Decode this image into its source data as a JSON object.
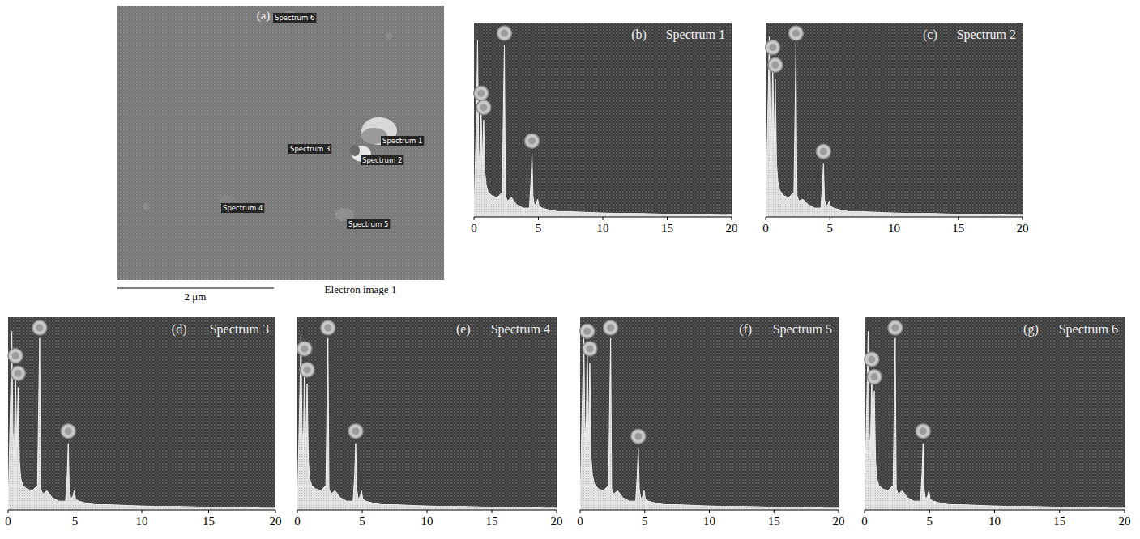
{
  "image_panel": {
    "panel_label": "(a)",
    "spot_labels": [
      "Spectrum 1",
      "Spectrum 2",
      "Spectrum 3",
      "Spectrum 4",
      "Spectrum 5",
      "Spectrum 6"
    ],
    "scale_bar": "2 μm",
    "caption": "Electron image 1"
  },
  "chart_data": [
    {
      "type": "area",
      "panel_label": "(b)",
      "title": "Spectrum 1",
      "tick_labels": "x",
      "xlim": [
        0,
        20
      ],
      "xticks": [
        0,
        5,
        10,
        15,
        20
      ],
      "ylim": [
        0,
        110
      ],
      "x": [
        0,
        0.1,
        0.2,
        0.28,
        0.36,
        0.45,
        0.55,
        0.65,
        0.75,
        0.85,
        0.95,
        1.1,
        1.4,
        1.8,
        2.2,
        2.28,
        2.36,
        2.44,
        2.6,
        2.9,
        3.3,
        3.8,
        4.3,
        4.42,
        4.5,
        4.58,
        4.7,
        4.85,
        4.95,
        5.05,
        5.3,
        5.8,
        6.5,
        7.5,
        9,
        11,
        13,
        15,
        17,
        19,
        20
      ],
      "values": [
        0,
        30,
        60,
        100,
        40,
        25,
        62,
        30,
        55,
        25,
        18,
        14,
        12,
        11,
        14,
        60,
        97,
        12,
        9,
        11,
        7,
        5,
        5,
        20,
        36,
        12,
        6,
        8,
        10,
        6,
        5,
        4,
        3,
        3,
        2.5,
        2,
        2,
        1.5,
        1.5,
        1,
        1
      ],
      "peaks": {
        "x": [
          0.55,
          0.75,
          2.36,
          4.5
        ],
        "y": [
          70,
          62,
          104,
          43
        ]
      }
    },
    {
      "type": "area",
      "panel_label": "(c)",
      "title": "Spectrum 2",
      "tick_labels": "x",
      "xlim": [
        0,
        20
      ],
      "xticks": [
        0,
        5,
        10,
        15,
        20
      ],
      "ylim": [
        0,
        110
      ],
      "x": [
        0,
        0.1,
        0.2,
        0.28,
        0.36,
        0.45,
        0.55,
        0.65,
        0.75,
        0.85,
        0.95,
        1.1,
        1.4,
        1.8,
        2.2,
        2.28,
        2.36,
        2.44,
        2.6,
        2.9,
        3.3,
        3.8,
        4.3,
        4.42,
        4.5,
        4.58,
        4.7,
        4.85,
        4.95,
        5.05,
        5.3,
        5.8,
        6.5,
        7.5,
        9,
        11,
        13,
        15,
        17,
        19,
        20
      ],
      "values": [
        0,
        35,
        70,
        102,
        50,
        35,
        88,
        40,
        78,
        30,
        20,
        15,
        12,
        11,
        14,
        55,
        98,
        12,
        9,
        10,
        7,
        5,
        5,
        18,
        30,
        10,
        6,
        7,
        9,
        6,
        5,
        4,
        3,
        3,
        2.5,
        2,
        2,
        1.5,
        1.5,
        1,
        1
      ],
      "peaks": {
        "x": [
          0.55,
          0.75,
          2.36,
          4.5
        ],
        "y": [
          96,
          86,
          104,
          37
        ]
      }
    },
    {
      "type": "area",
      "panel_label": "(d)",
      "title": "Spectrum 3",
      "tick_labels": "x",
      "xlim": [
        0,
        20
      ],
      "xticks": [
        0,
        5,
        10,
        15,
        20
      ],
      "ylim": [
        0,
        110
      ],
      "x": [
        0,
        0.1,
        0.2,
        0.28,
        0.36,
        0.45,
        0.55,
        0.65,
        0.75,
        0.85,
        0.95,
        1.1,
        1.4,
        1.8,
        2.2,
        2.28,
        2.36,
        2.44,
        2.6,
        2.9,
        3.3,
        3.8,
        4.3,
        4.42,
        4.5,
        4.58,
        4.7,
        4.85,
        4.95,
        5.05,
        5.3,
        5.8,
        6.5,
        7.5,
        9,
        11,
        13,
        15,
        17,
        19,
        20
      ],
      "values": [
        0,
        35,
        70,
        102,
        45,
        30,
        80,
        35,
        70,
        28,
        18,
        14,
        12,
        11,
        14,
        58,
        98,
        12,
        9,
        11,
        7,
        5,
        5,
        20,
        38,
        12,
        6,
        8,
        11,
        6,
        5,
        4,
        3,
        3,
        2.5,
        2,
        2,
        1.5,
        1.5,
        1,
        1
      ],
      "peaks": {
        "x": [
          0.55,
          0.75,
          2.36,
          4.5
        ],
        "y": [
          88,
          78,
          104,
          45
        ]
      }
    },
    {
      "type": "area",
      "panel_label": "(e)",
      "title": "Spectrum 4",
      "tick_labels": "x",
      "xlim": [
        0,
        20
      ],
      "xticks": [
        0,
        5,
        10,
        15,
        20
      ],
      "ylim": [
        0,
        110
      ],
      "x": [
        0,
        0.1,
        0.2,
        0.28,
        0.36,
        0.45,
        0.55,
        0.65,
        0.75,
        0.85,
        0.95,
        1.1,
        1.4,
        1.8,
        2.2,
        2.28,
        2.36,
        2.44,
        2.6,
        2.9,
        3.3,
        3.8,
        4.3,
        4.42,
        4.5,
        4.58,
        4.7,
        4.85,
        4.95,
        5.05,
        5.3,
        5.8,
        6.5,
        7.5,
        9,
        11,
        13,
        15,
        17,
        19,
        20
      ],
      "values": [
        0,
        35,
        70,
        102,
        48,
        32,
        84,
        36,
        72,
        28,
        18,
        14,
        12,
        11,
        14,
        58,
        98,
        12,
        9,
        11,
        7,
        5,
        5,
        20,
        38,
        12,
        6,
        8,
        11,
        6,
        5,
        4,
        3,
        3,
        2.5,
        2,
        2,
        1.5,
        1.5,
        1,
        1
      ],
      "peaks": {
        "x": [
          0.55,
          0.75,
          2.36,
          4.5
        ],
        "y": [
          92,
          80,
          104,
          45
        ]
      }
    },
    {
      "type": "area",
      "panel_label": "(f)",
      "title": "Spectrum 5",
      "tick_labels": "x",
      "xlim": [
        0,
        20
      ],
      "xticks": [
        0,
        5,
        10,
        15,
        20
      ],
      "ylim": [
        0,
        110
      ],
      "x": [
        0,
        0.1,
        0.2,
        0.28,
        0.36,
        0.45,
        0.55,
        0.65,
        0.75,
        0.85,
        0.95,
        1.1,
        1.4,
        1.8,
        2.2,
        2.28,
        2.36,
        2.44,
        2.6,
        2.9,
        3.3,
        3.8,
        4.3,
        4.42,
        4.5,
        4.58,
        4.7,
        4.85,
        4.95,
        5.05,
        5.3,
        5.8,
        6.5,
        7.5,
        9,
        11,
        13,
        15,
        17,
        19,
        20
      ],
      "values": [
        0,
        38,
        72,
        103,
        52,
        36,
        94,
        40,
        84,
        30,
        20,
        15,
        12,
        11,
        14,
        58,
        98,
        12,
        9,
        11,
        7,
        5,
        5,
        20,
        35,
        12,
        6,
        8,
        11,
        6,
        5,
        4,
        3,
        3,
        2.5,
        2,
        2,
        1.5,
        1.5,
        1,
        1
      ],
      "peaks": {
        "x": [
          0.55,
          0.75,
          2.36,
          4.5
        ],
        "y": [
          102,
          92,
          104,
          42
        ]
      }
    },
    {
      "type": "area",
      "panel_label": "(g)",
      "title": "Spectrum 6",
      "tick_labels": "x",
      "xlim": [
        0,
        20
      ],
      "xticks": [
        0,
        5,
        10,
        15,
        20
      ],
      "ylim": [
        0,
        110
      ],
      "x": [
        0,
        0.1,
        0.2,
        0.28,
        0.36,
        0.45,
        0.55,
        0.65,
        0.75,
        0.85,
        0.95,
        1.1,
        1.4,
        1.8,
        2.2,
        2.28,
        2.36,
        2.44,
        2.6,
        2.9,
        3.3,
        3.8,
        4.3,
        4.42,
        4.5,
        4.58,
        4.7,
        4.85,
        4.95,
        5.05,
        5.3,
        5.8,
        6.5,
        7.5,
        9,
        11,
        13,
        15,
        17,
        19,
        20
      ],
      "values": [
        0,
        35,
        70,
        102,
        45,
        30,
        78,
        34,
        68,
        28,
        18,
        14,
        12,
        11,
        14,
        58,
        98,
        12,
        9,
        11,
        7,
        5,
        5,
        20,
        38,
        12,
        6,
        8,
        11,
        6,
        5,
        4,
        3,
        3,
        2.5,
        2,
        2,
        1.5,
        1.5,
        1,
        1
      ],
      "peaks": {
        "x": [
          0.55,
          0.75,
          2.36,
          4.5
        ],
        "y": [
          86,
          76,
          104,
          45
        ]
      }
    }
  ]
}
